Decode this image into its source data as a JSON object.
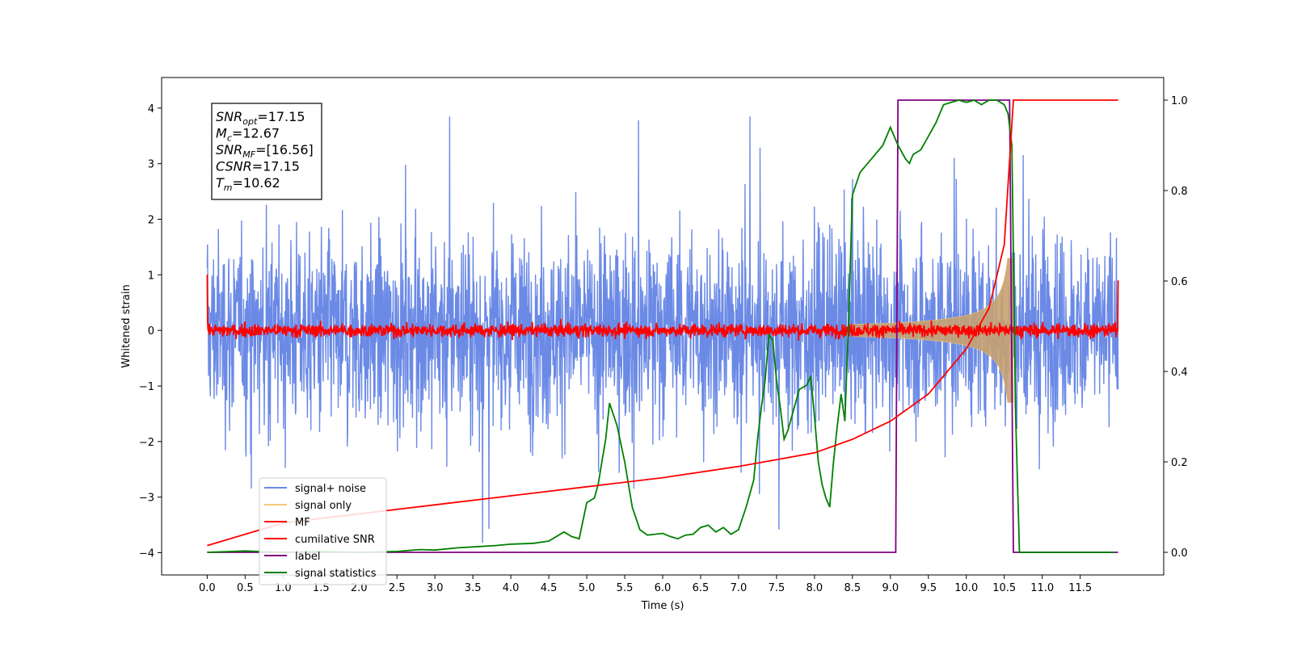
{
  "chart_data": {
    "type": "line",
    "xlabel": "Time (s)",
    "ylabel": "Whitened strain",
    "xlim": [
      -0.6,
      12.6
    ],
    "ylim_left": [
      -4.4,
      4.55
    ],
    "ylim_right": [
      -0.05,
      1.05
    ],
    "x_ticks": [
      "0.0",
      "0.5",
      "1.0",
      "1.5",
      "2.0",
      "2.5",
      "3.0",
      "3.5",
      "4.0",
      "4.5",
      "5.0",
      "5.5",
      "6.0",
      "6.5",
      "7.0",
      "7.5",
      "8.0",
      "8.5",
      "9.0",
      "9.5",
      "10.0",
      "10.5",
      "11.0",
      "11.5"
    ],
    "y_ticks_left": [
      "4",
      "3",
      "2",
      "1",
      "0",
      "−1",
      "−2",
      "−3",
      "−4"
    ],
    "y_ticks_right": [
      "1.0",
      "0.8",
      "0.6",
      "0.4",
      "0.2",
      "0.0"
    ],
    "annotation": {
      "lines": [
        {
          "sym": "SNR",
          "sub": "opt",
          "val": "=17.15"
        },
        {
          "sym": "M",
          "sub": "c",
          "val": "=12.67"
        },
        {
          "sym": "SNR",
          "sub": "MF",
          "val": "=[16.56]"
        },
        {
          "sym": "CSNR",
          "sub": "",
          "val": "=17.15"
        },
        {
          "sym": "T",
          "sub": "m",
          "val": "=10.62"
        }
      ]
    },
    "legend": {
      "position": "lower left",
      "entries": [
        {
          "label": "signal+ noise",
          "color": "#6b8ae6"
        },
        {
          "label": "signal only",
          "color": "#f5c97a"
        },
        {
          "label": "MF",
          "color": "#ff0000"
        },
        {
          "label": "cumilative SNR",
          "color": "#ff0000"
        },
        {
          "label": "label",
          "color": "#800080"
        },
        {
          "label": "signal statistics",
          "color": "#008000"
        }
      ]
    },
    "series": [
      {
        "name": "signal+ noise",
        "axis": "left",
        "color": "#6b8ae6",
        "note": "whitened noise band, approx +/-2 with spikes up to ~3.8",
        "x_range": [
          0.0,
          12.0
        ]
      },
      {
        "name": "signal only",
        "axis": "left",
        "color": "#f5c97a",
        "note": "chirp envelope growing to ~1.3 near merger",
        "x_range": [
          8.5,
          10.62
        ]
      },
      {
        "name": "MF",
        "axis": "left",
        "color": "#ff0000",
        "note": "flat near 0 with small fluctuations",
        "x_range": [
          0.0,
          12.0
        ]
      },
      {
        "name": "cumilative SNR",
        "axis": "right",
        "color": "#ff0000",
        "x": [
          0.0,
          1.0,
          2.0,
          3.0,
          4.0,
          5.0,
          6.0,
          7.0,
          7.5,
          8.0,
          8.5,
          9.0,
          9.5,
          10.0,
          10.3,
          10.5,
          10.62,
          12.0
        ],
        "y": [
          0.015,
          0.065,
          0.085,
          0.105,
          0.125,
          0.145,
          0.165,
          0.19,
          0.205,
          0.22,
          0.25,
          0.29,
          0.35,
          0.45,
          0.54,
          0.68,
          1.0,
          1.0
        ]
      },
      {
        "name": "label",
        "axis": "right",
        "color": "#800080",
        "x": [
          0.0,
          9.07,
          9.1,
          10.57,
          10.62,
          12.0
        ],
        "y": [
          0.0,
          0.0,
          1.0,
          1.0,
          0.0,
          0.0
        ]
      },
      {
        "name": "signal statistics",
        "axis": "right",
        "color": "#008000",
        "x": [
          0.0,
          0.5,
          1.0,
          1.5,
          2.0,
          2.5,
          2.8,
          3.0,
          3.3,
          3.5,
          3.8,
          4.0,
          4.3,
          4.5,
          4.7,
          4.8,
          4.9,
          5.0,
          5.1,
          5.15,
          5.2,
          5.25,
          5.3,
          5.4,
          5.5,
          5.6,
          5.7,
          5.8,
          5.9,
          6.0,
          6.1,
          6.2,
          6.3,
          6.4,
          6.5,
          6.6,
          6.7,
          6.8,
          6.9,
          7.0,
          7.1,
          7.2,
          7.25,
          7.3,
          7.35,
          7.4,
          7.45,
          7.5,
          7.55,
          7.6,
          7.65,
          7.7,
          7.8,
          7.9,
          7.95,
          8.0,
          8.05,
          8.1,
          8.15,
          8.2,
          8.25,
          8.3,
          8.35,
          8.4,
          8.45,
          8.5,
          8.6,
          8.7,
          8.8,
          8.9,
          9.0,
          9.1,
          9.2,
          9.25,
          9.3,
          9.4,
          9.5,
          9.6,
          9.7,
          9.8,
          9.9,
          10.0,
          10.1,
          10.2,
          10.3,
          10.4,
          10.5,
          10.55,
          10.6,
          10.65,
          10.7,
          11.0,
          11.5,
          11.95
        ],
        "y": [
          0.0,
          0.003,
          0.0,
          0.002,
          0.0,
          0.002,
          0.006,
          0.005,
          0.01,
          0.012,
          0.015,
          0.018,
          0.02,
          0.025,
          0.045,
          0.035,
          0.03,
          0.11,
          0.12,
          0.15,
          0.2,
          0.25,
          0.33,
          0.28,
          0.2,
          0.1,
          0.05,
          0.038,
          0.04,
          0.042,
          0.035,
          0.03,
          0.038,
          0.04,
          0.055,
          0.06,
          0.045,
          0.055,
          0.04,
          0.05,
          0.1,
          0.16,
          0.25,
          0.32,
          0.38,
          0.48,
          0.47,
          0.38,
          0.32,
          0.25,
          0.27,
          0.3,
          0.36,
          0.37,
          0.39,
          0.3,
          0.2,
          0.15,
          0.12,
          0.1,
          0.2,
          0.28,
          0.35,
          0.29,
          0.52,
          0.79,
          0.84,
          0.86,
          0.88,
          0.9,
          0.94,
          0.9,
          0.87,
          0.86,
          0.88,
          0.89,
          0.92,
          0.95,
          0.99,
          0.995,
          1.0,
          0.995,
          1.0,
          0.99,
          1.0,
          1.0,
          0.99,
          0.97,
          0.9,
          0.3,
          0.0,
          0.0,
          0.0,
          0.0
        ]
      }
    ]
  }
}
